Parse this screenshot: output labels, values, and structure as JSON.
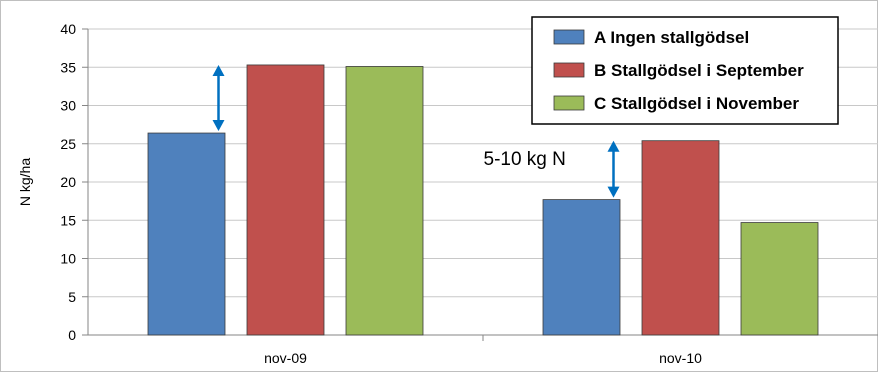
{
  "chart_data": {
    "type": "bar",
    "title": "",
    "xlabel": "",
    "ylabel": "N kg/ha",
    "ylim": [
      0,
      40
    ],
    "yticks": [
      0,
      5,
      10,
      15,
      20,
      25,
      30,
      35,
      40
    ],
    "grid": true,
    "legend_position": "top-right",
    "categories": [
      "nov-09",
      "nov-10"
    ],
    "series": [
      {
        "name": "A Ingen stallgödsel",
        "color": "#4f81bd",
        "values": [
          26.4,
          17.7
        ]
      },
      {
        "name": "B Stallgödsel i September",
        "color": "#c0504d",
        "values": [
          35.3,
          25.4
        ]
      },
      {
        "name": "C Stallgödsel i November",
        "color": "#9bbb59",
        "values": [
          35.1,
          14.7
        ]
      }
    ],
    "annotations": [
      {
        "text": "5-10 kg N",
        "category": "nov-10"
      }
    ],
    "arrow_color": "#0070c0"
  }
}
